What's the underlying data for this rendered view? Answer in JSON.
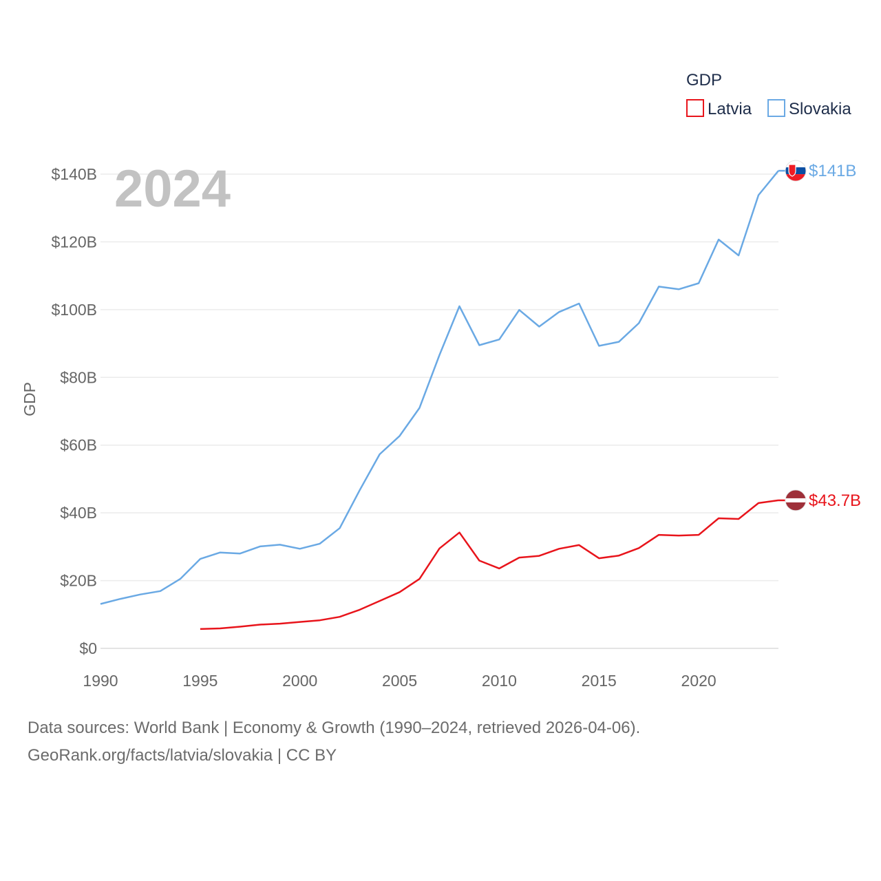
{
  "chart_data": {
    "type": "line",
    "title": "GDP",
    "legend_title": "GDP",
    "legend_position": "top-right",
    "ylabel": "GDP",
    "xlabel": "",
    "year_watermark": "2024",
    "ylim": [
      0,
      140
    ],
    "xlim": [
      1990,
      2024
    ],
    "x_ticks": [
      "1990",
      "1995",
      "2000",
      "2005",
      "2010",
      "2015",
      "2020"
    ],
    "y_ticks": [
      "$0",
      "$20B",
      "$40B",
      "$60B",
      "$80B",
      "$100B",
      "$120B",
      "$140B"
    ],
    "y_tick_values": [
      0,
      20,
      40,
      60,
      80,
      100,
      120,
      140
    ],
    "grid": true,
    "units": "billion USD",
    "series": [
      {
        "name": "Latvia",
        "color": "#e8141b",
        "end_label": "$43.7B",
        "flag": "latvia-flag",
        "x": [
          1995,
          1996,
          1997,
          1998,
          1999,
          2000,
          2001,
          2002,
          2003,
          2004,
          2005,
          2006,
          2007,
          2008,
          2009,
          2010,
          2011,
          2012,
          2013,
          2014,
          2015,
          2016,
          2017,
          2018,
          2019,
          2020,
          2021,
          2022,
          2023,
          2024
        ],
        "values": [
          5.7,
          5.9,
          6.4,
          7.0,
          7.3,
          7.8,
          8.3,
          9.3,
          11.4,
          14.0,
          16.6,
          20.5,
          29.5,
          34.2,
          25.9,
          23.6,
          26.8,
          27.3,
          29.4,
          30.5,
          26.6,
          27.4,
          29.6,
          33.5,
          33.3,
          33.5,
          38.4,
          38.2,
          42.9,
          43.7
        ]
      },
      {
        "name": "Slovakia",
        "color": "#6aa9e4",
        "end_label": "$141B",
        "flag": "slovakia-flag",
        "x": [
          1990,
          1991,
          1992,
          1993,
          1994,
          1995,
          1996,
          1997,
          1998,
          1999,
          2000,
          2001,
          2002,
          2003,
          2004,
          2005,
          2006,
          2007,
          2008,
          2009,
          2010,
          2011,
          2012,
          2013,
          2014,
          2015,
          2016,
          2017,
          2018,
          2019,
          2020,
          2021,
          2022,
          2023,
          2024
        ],
        "values": [
          13.1,
          14.6,
          15.9,
          16.9,
          20.5,
          26.4,
          28.3,
          28.0,
          30.1,
          30.6,
          29.4,
          30.9,
          35.5,
          46.7,
          57.3,
          62.7,
          71.0,
          86.6,
          101.0,
          89.5,
          91.2,
          99.9,
          95.0,
          99.3,
          101.8,
          89.3,
          90.5,
          96.0,
          106.8,
          106.0,
          107.8,
          120.7,
          116.0,
          133.8,
          141.0
        ]
      }
    ]
  },
  "footer": {
    "line1": "Data sources: World Bank | Economy & Growth (1990–2024, retrieved 2026-04-06).",
    "line2": "GeoRank.org/facts/latvia/slovakia | CC BY"
  }
}
